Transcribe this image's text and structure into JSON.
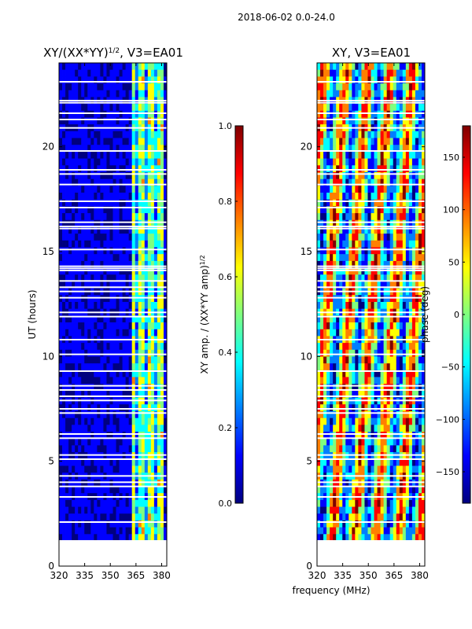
{
  "suptitle": "2018-06-02 0.0-24.0",
  "colors": {
    "jet": [
      "#00007f",
      "#0000ff",
      "#007fff",
      "#00ffff",
      "#7fff7f",
      "#ffff00",
      "#ff7f00",
      "#ff0000",
      "#7f0000"
    ],
    "background": "#ffffff",
    "gap": "#ffffff"
  },
  "chart_data": [
    {
      "type": "heatmap",
      "id": "amp",
      "title": "XY/(XX*YY)",
      "title_sup": "1/2",
      "title_tail": ", V3=EA01",
      "xlabel": "",
      "ylabel": "UT (hours)",
      "xlim": [
        320,
        383
      ],
      "ylim": [
        0,
        24
      ],
      "xticks": [
        "320",
        "335",
        "350",
        "365",
        "380"
      ],
      "xtick_values": [
        320,
        335,
        350,
        365,
        380
      ],
      "yticks": [
        "0",
        "5",
        "10",
        "15",
        "20"
      ],
      "ytick_values": [
        0,
        5,
        10,
        15,
        20
      ],
      "data_start_hour": 1.2,
      "bright_band_mhz": [
        363,
        382
      ],
      "colorbar": {
        "label": "XY amp. / (XX*YY amp)",
        "label_sup": "1/2",
        "range": [
          0.0,
          1.0
        ],
        "ticks": [
          "0.0",
          "0.2",
          "0.4",
          "0.6",
          "0.8",
          "1.0"
        ],
        "tick_values": [
          0.0,
          0.2,
          0.4,
          0.6,
          0.8,
          1.0
        ]
      }
    },
    {
      "type": "heatmap",
      "id": "phase",
      "title": "XY, V3=EA01",
      "xlabel": "frequency (MHz)",
      "ylabel": "",
      "xlim": [
        320,
        383
      ],
      "ylim": [
        0,
        24
      ],
      "xticks": [
        "320",
        "335",
        "350",
        "365",
        "380"
      ],
      "xtick_values": [
        320,
        335,
        350,
        365,
        380
      ],
      "yticks": [
        "0",
        "5",
        "10",
        "15",
        "20"
      ],
      "ytick_values": [
        0,
        5,
        10,
        15,
        20
      ],
      "data_start_hour": 1.2,
      "colorbar": {
        "label": "phase (deg)",
        "range": [
          -180,
          180
        ],
        "ticks": [
          "−150",
          "−100",
          "−50",
          "0",
          "50",
          "100",
          "150"
        ],
        "tick_values": [
          -150,
          -100,
          -50,
          0,
          50,
          100,
          150
        ]
      }
    }
  ],
  "flag_gaps_hours": [
    1.2,
    2.1,
    3.3,
    3.8,
    4.0,
    4.3,
    5.1,
    5.3,
    6.1,
    6.3,
    7.3,
    7.5,
    7.9,
    8.1,
    8.4,
    8.6,
    9.3,
    10.1,
    10.8,
    11.9,
    12.1,
    12.8,
    13.1,
    13.3,
    13.6,
    14.1,
    14.2,
    14.3,
    15.1,
    16.1,
    16.2,
    16.4,
    17.1,
    17.4,
    18.2,
    18.7,
    18.9,
    19.8,
    20.9,
    21.3,
    21.6,
    22.1,
    22.2,
    23.1
  ]
}
